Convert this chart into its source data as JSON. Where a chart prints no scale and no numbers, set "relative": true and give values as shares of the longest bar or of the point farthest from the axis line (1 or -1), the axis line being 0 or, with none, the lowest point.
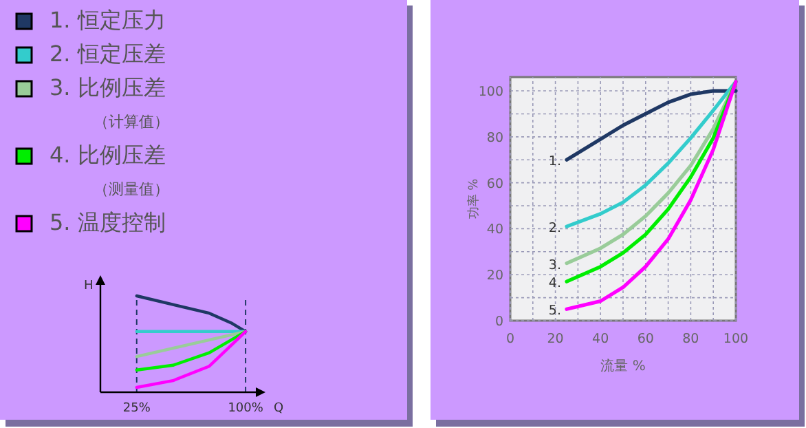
{
  "chart_data": [
    {
      "type": "line",
      "relative": true,
      "xlabel": "Q",
      "ylabel": "H",
      "xlim": [
        0,
        108
      ],
      "xticks": [
        {
          "value": 25,
          "label": "25%"
        },
        {
          "value": 100,
          "label": "100%"
        }
      ],
      "legend": "top",
      "grid": false,
      "marker": "none",
      "line_style": "solid",
      "ref_lines": [
        {
          "axis": "x",
          "value": 25,
          "line_style": "dashed",
          "color": "#1f3864"
        },
        {
          "axis": "x",
          "value": 100,
          "line_style": "dashed",
          "color": "#1f3864"
        }
      ],
      "series": [
        {
          "name": "1.  恒定压力",
          "color": "#1f3864",
          "x": [
            25,
            50,
            75,
            90,
            100
          ],
          "values": [
            1.0,
            0.91,
            0.82,
            0.72,
            0.63
          ]
        },
        {
          "name": "2.  恒定压差",
          "color": "#33cccc",
          "x": [
            25,
            100
          ],
          "values": [
            0.63,
            0.63
          ]
        },
        {
          "name": "3.  比例压差（计算值）",
          "color": "#99cc99",
          "x": [
            25,
            100
          ],
          "values": [
            0.37,
            0.63
          ]
        },
        {
          "name": "4.  比例压差（测量值）",
          "color": "#00ee00",
          "x": [
            25,
            50,
            75,
            100
          ],
          "values": [
            0.23,
            0.28,
            0.41,
            0.63
          ]
        },
        {
          "name": "5.  温度控制",
          "color": "#ff00ff",
          "x": [
            25,
            50,
            75,
            100
          ],
          "values": [
            0.05,
            0.12,
            0.27,
            0.63
          ]
        }
      ]
    },
    {
      "type": "line",
      "xlabel": "流量 %",
      "ylabel": "功率 %",
      "xlim": [
        0,
        100
      ],
      "ylim": [
        0,
        106
      ],
      "grid": true,
      "marker": "none",
      "line_style": "solid",
      "xticks": [
        0,
        {
          "value": 10,
          "label": null
        },
        20,
        {
          "value": 30,
          "label": null
        },
        40,
        {
          "value": 50,
          "label": null
        },
        60,
        {
          "value": 70,
          "label": null
        },
        80,
        {
          "value": 90,
          "label": null
        },
        100
      ],
      "yticks": [
        0,
        {
          "value": 10,
          "label": null
        },
        20,
        {
          "value": 30,
          "label": null
        },
        40,
        {
          "value": 50,
          "label": null
        },
        60,
        {
          "value": 70,
          "label": null
        },
        80,
        {
          "value": 90,
          "label": null
        },
        100
      ],
      "series": [
        {
          "name": "1.",
          "color": "#1f3864",
          "x": [
            25,
            40,
            50,
            60,
            70,
            80,
            90,
            100
          ],
          "values": [
            70,
            79,
            85,
            90,
            95,
            98.5,
            100,
            100
          ]
        },
        {
          "name": "2.",
          "color": "#33cccc",
          "x": [
            25,
            40,
            50,
            60,
            70,
            80,
            90,
            100
          ],
          "values": [
            41,
            46.5,
            51.5,
            59,
            68.5,
            79.5,
            91.5,
            104
          ]
        },
        {
          "name": "3.",
          "color": "#99cc99",
          "x": [
            25,
            40,
            50,
            60,
            70,
            80,
            90,
            100
          ],
          "values": [
            25,
            31.5,
            37.5,
            45.5,
            55.5,
            67.5,
            83.5,
            104
          ]
        },
        {
          "name": "4.",
          "color": "#00ee00",
          "x": [
            25,
            40,
            50,
            60,
            70,
            80,
            90,
            100
          ],
          "values": [
            17,
            23.5,
            29.5,
            37.5,
            48.5,
            62.5,
            79.5,
            104
          ]
        },
        {
          "name": "5.",
          "color": "#ff00ff",
          "x": [
            25,
            40,
            50,
            60,
            70,
            80,
            90,
            100
          ],
          "values": [
            5,
            8.5,
            14.5,
            23.5,
            35.5,
            52.5,
            74.5,
            104
          ]
        }
      ]
    }
  ]
}
